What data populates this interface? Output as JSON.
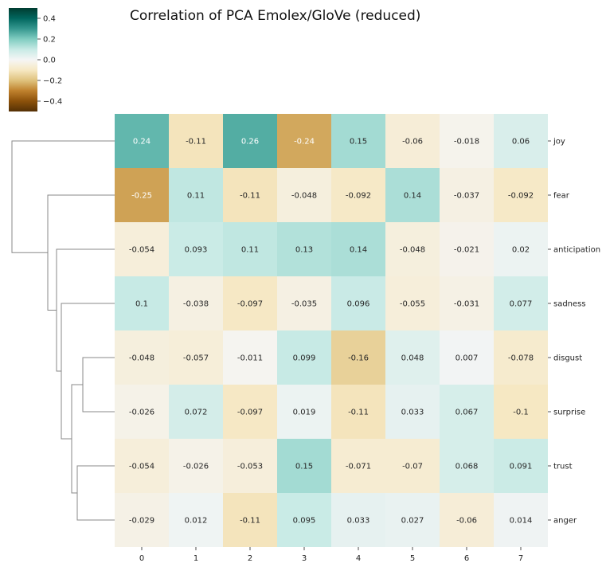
{
  "chart_data": {
    "type": "heatmap",
    "title": "Correlation of PCA Emolex/GloVe (reduced)",
    "columns": [
      "0",
      "1",
      "2",
      "3",
      "4",
      "5",
      "6",
      "7"
    ],
    "rows": [
      "joy",
      "fear",
      "anticipation",
      "sadness",
      "disgust",
      "surprise",
      "trust",
      "anger"
    ],
    "values": [
      [
        0.24,
        -0.11,
        0.26,
        -0.24,
        0.15,
        -0.06,
        -0.018,
        0.06
      ],
      [
        -0.25,
        0.11,
        -0.11,
        -0.048,
        -0.092,
        0.14,
        -0.037,
        -0.092
      ],
      [
        -0.054,
        0.093,
        0.11,
        0.13,
        0.14,
        -0.048,
        -0.021,
        0.02
      ],
      [
        0.1,
        -0.038,
        -0.097,
        -0.035,
        0.096,
        -0.055,
        -0.031,
        0.077
      ],
      [
        -0.048,
        -0.057,
        -0.011,
        0.099,
        -0.16,
        0.048,
        0.007,
        -0.078
      ],
      [
        -0.026,
        0.072,
        -0.097,
        0.019,
        -0.11,
        0.033,
        0.067,
        -0.1
      ],
      [
        -0.054,
        -0.026,
        -0.053,
        0.15,
        -0.071,
        -0.07,
        0.068,
        0.091
      ],
      [
        -0.029,
        0.012,
        -0.11,
        0.095,
        0.033,
        0.027,
        -0.06,
        0.014
      ]
    ],
    "labels": [
      [
        "0.24",
        "-0.11",
        "0.26",
        "-0.24",
        "0.15",
        "-0.06",
        "-0.018",
        "0.06"
      ],
      [
        "-0.25",
        "0.11",
        "-0.11",
        "-0.048",
        "-0.092",
        "0.14",
        "-0.037",
        "-0.092"
      ],
      [
        "-0.054",
        "0.093",
        "0.11",
        "0.13",
        "0.14",
        "-0.048",
        "-0.021",
        "0.02"
      ],
      [
        "0.1",
        "-0.038",
        "-0.097",
        "-0.035",
        "0.096",
        "-0.055",
        "-0.031",
        "0.077"
      ],
      [
        "-0.048",
        "-0.057",
        "-0.011",
        "0.099",
        "-0.16",
        "0.048",
        "0.007",
        "-0.078"
      ],
      [
        "-0.026",
        "0.072",
        "-0.097",
        "0.019",
        "-0.11",
        "0.033",
        "0.067",
        "-0.1"
      ],
      [
        "-0.054",
        "-0.026",
        "-0.053",
        "0.15",
        "-0.071",
        "-0.07",
        "0.068",
        "0.091"
      ],
      [
        "-0.029",
        "0.012",
        "-0.11",
        "0.095",
        "0.033",
        "0.027",
        "-0.06",
        "0.014"
      ]
    ],
    "colormap": "BrBG",
    "vmin": -0.5,
    "vmax": 0.5,
    "colorbar": {
      "ticks": [
        0.4,
        0.2,
        0.0,
        -0.2,
        -0.4
      ],
      "tick_labels": [
        "0.4",
        "0.2",
        "0.0",
        "−0.2",
        "−0.4"
      ]
    },
    "row_dendrogram": true,
    "colors": {
      "dendrogram": "#888888"
    }
  }
}
